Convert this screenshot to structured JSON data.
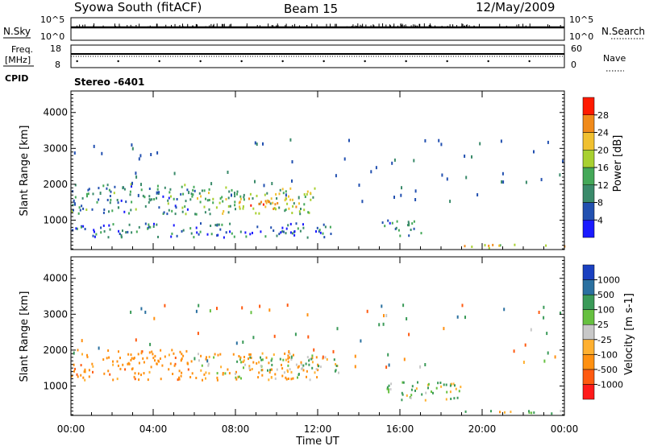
{
  "header": {
    "station": "Syowa South (fitACF)",
    "beam": "Beam 15",
    "date": "12/May/2009"
  },
  "panels": {
    "nsky": {
      "label": "N.Sky",
      "right_label": "N.Search",
      "ticks": [
        "10^5",
        "10^0"
      ]
    },
    "freq": {
      "label_line1": "Freq.",
      "label_line2": "[MHz]",
      "left_ticks": [
        "18",
        "8"
      ],
      "right_ticks": [
        "60",
        "0"
      ],
      "right_label": "Nave"
    },
    "cpid": {
      "label": "CPID",
      "value": "Stereo  -6401"
    }
  },
  "colors": {
    "power": [
      "#1a1aff",
      "#2250b0",
      "#3a8a6a",
      "#44a858",
      "#a8d030",
      "#f0c030",
      "#f08a1a",
      "#ff1a00"
    ],
    "velocity": [
      "#ff1a1a",
      "#ff5a10",
      "#ff9010",
      "#ffb030",
      "#c8c8c8",
      "#66c040",
      "#3a9a58",
      "#2a70a0",
      "#1a40c0"
    ],
    "ground": "#bcbcbc"
  },
  "chart_data": [
    {
      "type": "heatmap",
      "title": "",
      "xlabel": "Time UT",
      "ylabel": "Slant Range [km]",
      "xlim": [
        "00:00",
        "24:00"
      ],
      "x_ticks": [
        "00:00",
        "04:00",
        "08:00",
        "12:00",
        "16:00",
        "20:00",
        "00:00"
      ],
      "ylim": [
        180,
        4600
      ],
      "y_ticks": [
        1000,
        2000,
        3000,
        4000
      ],
      "colorbar": {
        "label": "Power [dB]",
        "levels": [
          4,
          8,
          12,
          16,
          20,
          24,
          28
        ],
        "range": [
          0,
          32
        ]
      },
      "echo_regions": [
        {
          "time": [
            "00:00",
            "06:00"
          ],
          "range_km": [
            1150,
            2000
          ],
          "power_db": 10
        },
        {
          "time": [
            "06:00",
            "12:00"
          ],
          "range_km": [
            1150,
            1900
          ],
          "power_db": 16
        },
        {
          "time": [
            "08:00",
            "11:00"
          ],
          "range_km": [
            1300,
            1600
          ],
          "power_db": 24
        },
        {
          "time": [
            "00:00",
            "13:00"
          ],
          "range_km": [
            500,
            900
          ],
          "power_db": 8
        },
        {
          "time": [
            "15:00",
            "17:00"
          ],
          "range_km": [
            550,
            1000
          ],
          "power_db": 10
        },
        {
          "time": [
            "19:00",
            "24:00"
          ],
          "range_km": [
            200,
            300
          ],
          "power_db": 22
        }
      ]
    },
    {
      "type": "heatmap",
      "title": "",
      "xlabel": "Time UT",
      "ylabel": "Slant Range [km]",
      "xlim": [
        "00:00",
        "24:00"
      ],
      "x_ticks": [
        "00:00",
        "04:00",
        "08:00",
        "12:00",
        "16:00",
        "20:00",
        "00:00"
      ],
      "ylim": [
        180,
        4600
      ],
      "y_ticks": [
        1000,
        2000,
        3000,
        4000
      ],
      "colorbar": {
        "label": "Velocity [m s-1]",
        "levels": [
          "-1000",
          "-500",
          "-100",
          "-25",
          "25",
          "100",
          "500",
          "1000"
        ]
      },
      "echo_regions": [
        {
          "time": [
            "00:00",
            "06:00"
          ],
          "range_km": [
            1150,
            2000
          ],
          "velocity": -300
        },
        {
          "time": [
            "06:00",
            "12:00"
          ],
          "range_km": [
            1150,
            1900
          ],
          "velocity": -150
        },
        {
          "time": [
            "08:00",
            "13:00"
          ],
          "range_km": [
            1300,
            1800
          ],
          "velocity": 0
        },
        {
          "time": [
            "15:00",
            "19:00"
          ],
          "range_km": [
            550,
            1100
          ],
          "velocity": 150
        },
        {
          "time": [
            "19:00",
            "24:00"
          ],
          "range_km": [
            200,
            300
          ],
          "velocity": 80
        }
      ]
    }
  ]
}
